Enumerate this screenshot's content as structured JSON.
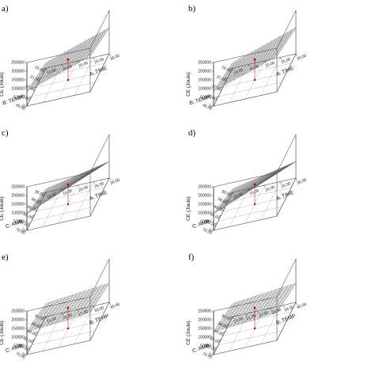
{
  "figure": {
    "background": "#ffffff",
    "line_color": "#333333",
    "mesh_color": "#555555",
    "marker_color": "#c00000"
  },
  "chart_data": [
    {
      "panel": "a)",
      "type": "surface3d",
      "zlabel": "CE (Joule)",
      "zticks": [
        "0",
        "50000",
        "100000",
        "150000",
        "200000",
        "250000"
      ],
      "zlim": [
        0,
        250000
      ],
      "xlabel": "A: TIME",
      "xticks": [
        "10.00",
        "15.00",
        "20.00",
        "25.00",
        "30.00"
      ],
      "xlim": [
        10,
        30
      ],
      "ylabel": "B: TEMP",
      "yticks": [
        "15.00",
        "21.00",
        "27.00",
        "33.00",
        "45.00"
      ],
      "ylim": [
        15,
        45
      ],
      "corners": {
        "x0y0": 30000,
        "x1y0": 150000,
        "x0y1": 85000,
        "x1y1": 205000
      }
    },
    {
      "panel": "b)",
      "type": "surface3d",
      "zlabel": "CE (Joule)",
      "zticks": [
        "0",
        "50000",
        "100000",
        "150000",
        "200000",
        "250000"
      ],
      "zlim": [
        0,
        250000
      ],
      "xlabel": "A: TIME",
      "xticks": [
        "10.00",
        "15.00",
        "20.00",
        "25.00",
        "30.00"
      ],
      "xlim": [
        10,
        30
      ],
      "ylabel": "B: TEMP",
      "yticks": [
        "15.00",
        "21.00",
        "27.00",
        "33.00",
        "45.00"
      ],
      "ylim": [
        15,
        45
      ],
      "corners": {
        "x0y0": 30000,
        "x1y0": 150000,
        "x0y1": 85000,
        "x1y1": 205000
      }
    },
    {
      "panel": "c)",
      "type": "surface3d",
      "zlabel": "CE (Joule)",
      "zticks": [
        "0",
        "50000",
        "100000",
        "150000",
        "200000",
        "250000"
      ],
      "zlim": [
        0,
        250000
      ],
      "xlabel": "A: TIME",
      "xticks": [
        "10.00",
        "15.00",
        "20.00",
        "25.00",
        "30.00"
      ],
      "xlim": [
        10,
        30
      ],
      "ylabel": "C: AMP",
      "yticks": [
        "30.00",
        "38.00",
        "46.00",
        "54.00",
        "62.00",
        "70.00"
      ],
      "ylim": [
        30,
        70
      ],
      "corners": {
        "x0y0": 20000,
        "x1y0": 95000,
        "x0y1": 95000,
        "x1y1": 245000
      }
    },
    {
      "panel": "d)",
      "type": "surface3d",
      "zlabel": "CE (Joule)",
      "zticks": [
        "0",
        "50000",
        "100000",
        "150000",
        "200000",
        "250000"
      ],
      "zlim": [
        0,
        250000
      ],
      "xlabel": "A: TIME",
      "xticks": [
        "10.00",
        "15.00",
        "20.00",
        "25.00",
        "30.00"
      ],
      "xlim": [
        10,
        30
      ],
      "ylabel": "C: AMP",
      "yticks": [
        "30.00",
        "38.00",
        "46.00",
        "54.00",
        "62.00",
        "70.00"
      ],
      "ylim": [
        30,
        70
      ],
      "corners": {
        "x0y0": 20000,
        "x1y0": 95000,
        "x0y1": 95000,
        "x1y1": 245000
      }
    },
    {
      "panel": "e)",
      "type": "surface3d",
      "zlabel": "CE (Joule)",
      "zticks": [
        "0",
        "50000",
        "100000",
        "150000",
        "200000",
        "250000"
      ],
      "zlim": [
        0,
        250000
      ],
      "xlabel": "B: TEMP",
      "xticks": [
        "15.00",
        "21.00",
        "27.00",
        "33.00",
        "45.00"
      ],
      "xlim": [
        15,
        45
      ],
      "ylabel": "C: AMP",
      "yticks": [
        "30.00",
        "38.00",
        "46.00",
        "54.00",
        "62.00",
        "70.00"
      ],
      "ylim": [
        30,
        70
      ],
      "corners": {
        "x0y0": 75000,
        "x1y0": 110000,
        "x0y1": 130000,
        "x1y1": 160000
      }
    },
    {
      "panel": "f)",
      "type": "surface3d",
      "zlabel": "CE (Joule)",
      "zticks": [
        "0",
        "50000",
        "100000",
        "150000",
        "200000",
        "250000"
      ],
      "zlim": [
        0,
        250000
      ],
      "xlabel": "B: TEMP",
      "xticks": [
        "15.00",
        "21.00",
        "27.00",
        "33.00",
        "39.00",
        "45.00"
      ],
      "xlim": [
        15,
        45
      ],
      "ylabel": "C: AMP",
      "yticks": [
        "30.00",
        "38.00",
        "46.00",
        "54.00",
        "62.00",
        "70.00"
      ],
      "ylim": [
        30,
        70
      ],
      "corners": {
        "x0y0": 75000,
        "x1y0": 110000,
        "x0y1": 130000,
        "x1y1": 160000
      }
    }
  ]
}
